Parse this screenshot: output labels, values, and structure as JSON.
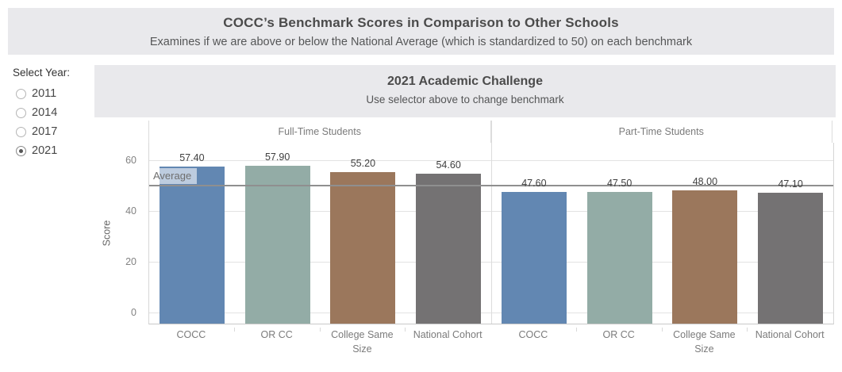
{
  "header": {
    "title": "COCC’s Benchmark Scores in Comparison to Other Schools",
    "subtitle": "Examines if we are above or below the National Average (which is standardized to 50) on each benchmark"
  },
  "year_selector": {
    "label": "Select Year:",
    "options": [
      {
        "label": "2011",
        "selected": false
      },
      {
        "label": "2014",
        "selected": false
      },
      {
        "label": "2017",
        "selected": false
      },
      {
        "label": "2021",
        "selected": true
      }
    ]
  },
  "chart_header": {
    "title": "2021 Academic Challenge",
    "subtitle": "Use selector above to change benchmark"
  },
  "chart_data": {
    "type": "bar",
    "title": "2021 Academic Challenge",
    "ylabel": "Score",
    "yticks": [
      0,
      20,
      40,
      60
    ],
    "ylim": [
      0,
      66
    ],
    "grid": true,
    "reference_line": {
      "label": "Average",
      "value": 50
    },
    "categories": [
      "COCC",
      "OR CC",
      "College Same Size",
      "National Cohort"
    ],
    "bar_colors": [
      "#6287b2",
      "#93aca6",
      "#9b775c",
      "#747273"
    ],
    "groups": [
      {
        "label": "Full-Time Students",
        "values": [
          57.4,
          57.9,
          55.2,
          54.6
        ],
        "value_labels": [
          "57.40",
          "57.90",
          "55.20",
          "54.60"
        ]
      },
      {
        "label": "Part-Time Students",
        "values": [
          47.6,
          47.5,
          48.0,
          47.1
        ],
        "value_labels": [
          "47.60",
          "47.50",
          "48.00",
          "47.10"
        ]
      }
    ]
  }
}
